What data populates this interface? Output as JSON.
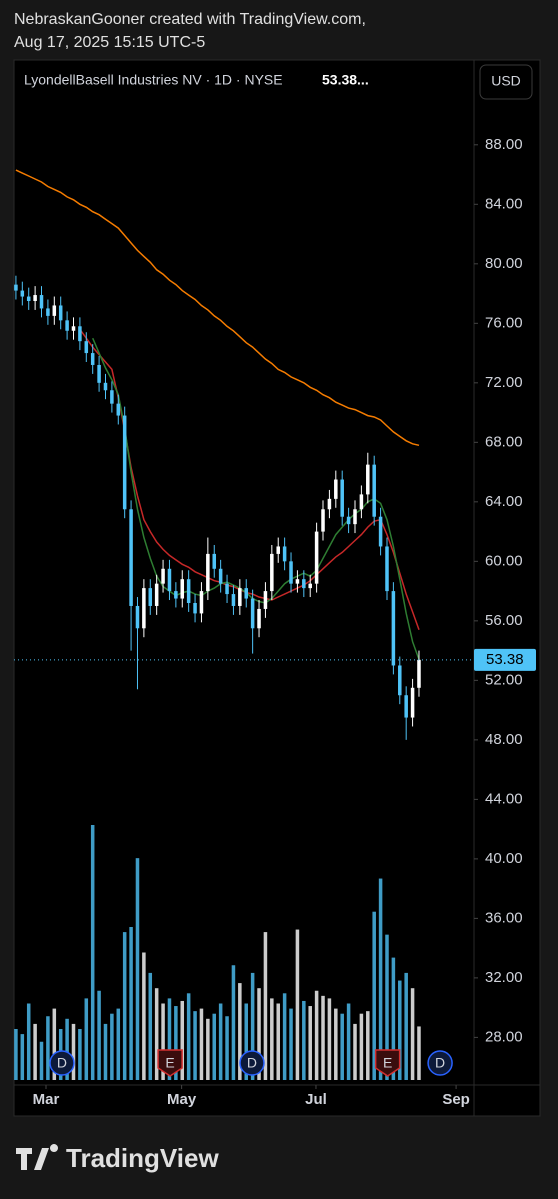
{
  "header": {
    "line1": "NebraskanGooner created with TradingView.com,",
    "line2": "Aug 17, 2025 15:15 UTC-5"
  },
  "footer": {
    "brand": "TradingView"
  },
  "chart_data": {
    "type": "candlestick",
    "title": "LyondellBasell Industries NV · 1D · NYSE",
    "header_price": "53.38...",
    "currency": "USD",
    "open": [
      78.6,
      78.2,
      77.8,
      77.5,
      77.9,
      77.0,
      76.5,
      77.2,
      76.2,
      75.5,
      75.8,
      74.8,
      74.0,
      73.2,
      72.0,
      71.5,
      70.6,
      69.8,
      63.5,
      57.0,
      55.5,
      58.2,
      57.0,
      58.5,
      59.5,
      58.0,
      57.5,
      58.8,
      57.2,
      56.5,
      58.0,
      60.5,
      59.5,
      58.5,
      57.8,
      57.0,
      58.2,
      57.5,
      55.5,
      56.8,
      58.0,
      60.5,
      61.0,
      60.0,
      58.5,
      58.8,
      58.2,
      58.5,
      62.0,
      63.5,
      64.2,
      65.5,
      63.0,
      62.5,
      63.5,
      64.5,
      66.5,
      63.0,
      61.0,
      58.0,
      53.0,
      51.0,
      49.5,
      51.5
    ],
    "high": [
      79.2,
      78.8,
      78.4,
      78.5,
      78.5,
      77.6,
      77.8,
      77.8,
      76.8,
      76.4,
      76.4,
      75.4,
      74.6,
      73.8,
      72.6,
      72.1,
      71.2,
      70.4,
      64.1,
      57.6,
      58.8,
      58.8,
      59.1,
      60.1,
      60.1,
      58.6,
      59.4,
      59.4,
      57.8,
      58.6,
      61.6,
      61.1,
      60.1,
      59.1,
      58.4,
      58.8,
      58.8,
      58.1,
      57.4,
      58.6,
      61.1,
      61.6,
      61.6,
      60.6,
      59.4,
      59.4,
      59.1,
      62.6,
      64.1,
      64.8,
      66.1,
      66.1,
      63.6,
      64.1,
      65.1,
      67.3,
      67.1,
      63.6,
      61.6,
      58.6,
      53.6,
      51.6,
      52.1,
      54.0
    ],
    "low": [
      77.6,
      77.2,
      76.9,
      76.9,
      76.4,
      75.9,
      75.9,
      75.6,
      74.9,
      74.9,
      74.2,
      73.4,
      72.6,
      71.4,
      70.9,
      70.0,
      69.2,
      62.9,
      54.0,
      51.4,
      54.9,
      56.4,
      56.4,
      57.9,
      57.4,
      56.9,
      56.9,
      56.6,
      55.9,
      55.9,
      57.4,
      58.9,
      57.9,
      57.2,
      56.4,
      56.4,
      56.9,
      53.8,
      54.9,
      56.2,
      57.4,
      59.9,
      59.4,
      57.9,
      57.9,
      57.6,
      57.6,
      57.9,
      61.4,
      62.9,
      63.6,
      62.4,
      61.9,
      61.9,
      62.9,
      63.9,
      62.4,
      60.4,
      57.4,
      52.4,
      50.4,
      48.0,
      48.9,
      50.9
    ],
    "close": [
      78.2,
      77.8,
      77.5,
      77.9,
      77.0,
      76.5,
      77.2,
      76.2,
      75.5,
      75.8,
      74.8,
      74.0,
      73.2,
      72.0,
      71.5,
      70.6,
      69.8,
      63.5,
      57.0,
      55.5,
      58.2,
      57.0,
      58.5,
      59.5,
      58.0,
      57.5,
      58.8,
      57.2,
      56.5,
      58.0,
      60.5,
      59.5,
      58.5,
      57.8,
      57.0,
      58.2,
      57.5,
      55.5,
      56.8,
      58.0,
      60.5,
      61.0,
      60.0,
      58.5,
      58.8,
      58.2,
      58.5,
      62.0,
      63.5,
      64.2,
      65.5,
      63.0,
      62.5,
      63.5,
      64.5,
      66.5,
      63.0,
      61.0,
      58.0,
      53.0,
      51.0,
      49.5,
      51.5,
      53.38
    ],
    "volume": [
      2.0,
      1.8,
      3.0,
      2.2,
      1.5,
      2.5,
      2.8,
      2.0,
      2.4,
      2.2,
      2.0,
      3.2,
      10.0,
      3.5,
      2.2,
      2.6,
      2.8,
      5.8,
      6.0,
      8.7,
      5.0,
      4.2,
      3.6,
      3.0,
      3.2,
      2.9,
      3.1,
      3.4,
      2.7,
      2.8,
      2.4,
      2.6,
      3.0,
      2.5,
      4.5,
      3.8,
      3.0,
      4.2,
      3.6,
      5.8,
      3.2,
      3.0,
      3.4,
      2.8,
      5.9,
      3.1,
      2.9,
      3.5,
      3.3,
      3.2,
      2.8,
      2.6,
      3.0,
      2.2,
      2.6,
      2.7,
      6.6,
      7.9,
      5.7,
      4.8,
      3.9,
      4.2,
      3.6,
      2.1
    ],
    "up_color": "#ffffff",
    "down_color": "#4fc3f7",
    "last_price_color": "#4fc3f7",
    "series": [
      {
        "color": "#f57c00",
        "values": [
          86.3,
          86.1,
          85.9,
          85.7,
          85.5,
          85.2,
          85.0,
          84.8,
          84.5,
          84.3,
          84.0,
          83.8,
          83.5,
          83.3,
          83.0,
          82.7,
          82.4,
          81.9,
          81.4,
          80.9,
          80.5,
          80.1,
          79.6,
          79.3,
          78.9,
          78.6,
          78.2,
          77.9,
          77.6,
          77.2,
          76.9,
          76.5,
          76.2,
          75.8,
          75.5,
          75.1,
          74.7,
          74.4,
          74.0,
          73.6,
          73.3,
          72.9,
          72.7,
          72.4,
          72.2,
          72.0,
          71.7,
          71.5,
          71.2,
          71.0,
          70.7,
          70.5,
          70.3,
          70.2,
          70.0,
          69.8,
          69.7,
          69.5,
          69.1,
          68.7,
          68.4,
          68.1,
          67.9,
          67.8
        ]
      },
      {
        "color": "#c62828",
        "values": [
          null,
          null,
          null,
          null,
          null,
          null,
          null,
          null,
          null,
          null,
          75.6,
          75.0,
          74.4,
          73.9,
          73.4,
          72.9,
          71.0,
          68.8,
          66.3,
          64.4,
          62.8,
          62.0,
          61.3,
          60.8,
          60.4,
          60.1,
          59.8,
          59.6,
          59.3,
          59.1,
          58.9,
          58.7,
          58.6,
          58.4,
          58.3,
          58.1,
          57.9,
          57.8,
          57.6,
          57.5,
          57.4,
          57.6,
          57.8,
          58.0,
          58.2,
          58.4,
          58.7,
          59.1,
          59.5,
          59.9,
          60.3,
          60.6,
          61.0,
          61.4,
          61.8,
          62.3,
          62.7,
          62.8,
          61.8,
          60.6,
          59.2,
          57.8,
          56.6,
          55.4
        ]
      },
      {
        "color": "#2e7d32",
        "values": [
          null,
          null,
          null,
          null,
          null,
          null,
          null,
          null,
          null,
          null,
          null,
          null,
          75.0,
          74.0,
          73.0,
          72.2,
          71.2,
          69.0,
          66.0,
          63.5,
          61.6,
          60.2,
          59.0,
          58.3,
          58.0,
          57.7,
          57.9,
          58.0,
          57.8,
          57.7,
          58.0,
          58.2,
          58.5,
          58.6,
          58.4,
          58.2,
          57.9,
          57.5,
          57.3,
          57.2,
          57.5,
          58.0,
          58.5,
          58.8,
          59.0,
          59.2,
          59.0,
          59.4,
          60.2,
          61.0,
          61.8,
          62.3,
          62.8,
          63.2,
          63.5,
          64.0,
          64.2,
          63.9,
          62.8,
          61.0,
          58.8,
          56.5,
          54.6,
          53.4
        ]
      }
    ],
    "events": [
      {
        "label": "D",
        "x": 7.2,
        "color": "#2962ff"
      },
      {
        "label": "E",
        "x": 24.1,
        "color": "#d32f2f"
      },
      {
        "label": "D",
        "x": 36.9,
        "color": "#2962ff"
      },
      {
        "label": "E",
        "x": 58.1,
        "color": "#d32f2f"
      },
      {
        "label": "D",
        "x": 66.3,
        "color": "#2962ff"
      }
    ],
    "xlim": [
      -0.3,
      71.6
    ],
    "xticks": [
      {
        "value": 4.7,
        "label": "Mar"
      },
      {
        "value": 25.9,
        "label": "May"
      },
      {
        "value": 46.9,
        "label": "Jul"
      },
      {
        "value": 68.8,
        "label": "Sep"
      }
    ],
    "ylim": [
      24.8,
      93.7
    ],
    "yticks": [
      {
        "value": 28,
        "label": "28.00"
      },
      {
        "value": 32,
        "label": "32.00"
      },
      {
        "value": 36,
        "label": "36.00"
      },
      {
        "value": 40,
        "label": "40.00"
      },
      {
        "value": 44,
        "label": "44.00"
      },
      {
        "value": 48,
        "label": "48.00"
      },
      {
        "value": 52,
        "label": "52.00"
      },
      {
        "value": 56,
        "label": "56.00"
      },
      {
        "value": 60,
        "label": "60.00"
      },
      {
        "value": 64,
        "label": "64.00"
      },
      {
        "value": 68,
        "label": "68.00"
      },
      {
        "value": 72,
        "label": "72.00"
      },
      {
        "value": 76,
        "label": "76.00"
      },
      {
        "value": 80,
        "label": "80.00"
      },
      {
        "value": 84,
        "label": "84.00"
      },
      {
        "value": 88,
        "label": "88.00"
      }
    ]
  }
}
